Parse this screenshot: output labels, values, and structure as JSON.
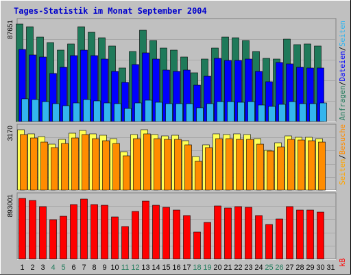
{
  "title": "Tages-Statistik im Monat September 2004",
  "colors": {
    "background": "#c0c0c0",
    "title": "#0000cc",
    "label_blue": "#0000ff",
    "anfragen": "#1f7a5a",
    "dateien": "#0000ff",
    "seiten": "#33b5ee",
    "besuche": "#ff8c00",
    "seiten_mid": "#ffff55",
    "kb": "#ff0000",
    "weekend_label": "#1f7a5a"
  },
  "chart_data": [
    {
      "type": "bar",
      "panel": "top",
      "ymax_label": "87651",
      "ylim": [
        0,
        87651
      ],
      "categories": [
        "1",
        "2",
        "3",
        "4",
        "5",
        "6",
        "7",
        "8",
        "9",
        "10",
        "11",
        "12",
        "13",
        "14",
        "15",
        "16",
        "17",
        "18",
        "19",
        "20",
        "21",
        "22",
        "23",
        "24",
        "25",
        "26",
        "27",
        "28",
        "29",
        "30",
        "31"
      ],
      "weekend_days": [
        "4",
        "5",
        "11",
        "12",
        "18",
        "19",
        "25",
        "26"
      ],
      "right_label_parts": [
        "Anfragen",
        "/",
        "Dateien",
        "/",
        "Seiten"
      ],
      "series": [
        {
          "name": "Anfragen",
          "values": [
            87651,
            85000,
            76000,
            71000,
            64000,
            70000,
            85000,
            80000,
            75000,
            68000,
            48000,
            63000,
            82000,
            73000,
            66000,
            64000,
            58000,
            44000,
            56000,
            66000,
            76000,
            75000,
            73000,
            63000,
            57000,
            56000,
            74000,
            69000,
            70000,
            68000,
            0
          ]
        },
        {
          "name": "Dateien",
          "values": [
            65000,
            60000,
            58000,
            43000,
            49000,
            59000,
            64000,
            59000,
            56000,
            45000,
            35000,
            51000,
            62000,
            56000,
            46000,
            45000,
            46000,
            33000,
            41000,
            57000,
            55000,
            55000,
            56000,
            45000,
            36000,
            53000,
            52000,
            49000,
            48000,
            48000,
            0
          ]
        },
        {
          "name": "Seiten",
          "values": [
            20500,
            19500,
            17600,
            16000,
            14500,
            16800,
            19500,
            18700,
            16600,
            16000,
            11900,
            16500,
            19000,
            17400,
            16000,
            15800,
            16200,
            12300,
            16000,
            17900,
            17600,
            17400,
            17800,
            14700,
            13500,
            15400,
            17800,
            16300,
            16300,
            16500,
            0
          ]
        }
      ]
    },
    {
      "type": "bar",
      "panel": "middle",
      "ymax_label": "3170",
      "ylim": [
        0,
        3170
      ],
      "right_label_parts": [
        "Seiten",
        "/",
        "Besuche"
      ],
      "series": [
        {
          "name": "Seiten",
          "values": [
            3170,
            2950,
            2800,
            2420,
            2650,
            3000,
            3120,
            2950,
            2880,
            2700,
            2020,
            2900,
            3170,
            2920,
            2850,
            2870,
            2600,
            1780,
            2390,
            2950,
            2920,
            2950,
            2930,
            2690,
            2100,
            2500,
            2850,
            2780,
            2770,
            2690,
            0
          ]
        },
        {
          "name": "Besuche",
          "values": [
            2930,
            2750,
            2530,
            2230,
            2450,
            2750,
            2900,
            2700,
            2600,
            2450,
            1790,
            2700,
            2950,
            2710,
            2660,
            2650,
            2370,
            1500,
            2230,
            2690,
            2700,
            2670,
            2650,
            2400,
            2040,
            2260,
            2650,
            2620,
            2600,
            2520,
            0
          ]
        }
      ]
    },
    {
      "type": "bar",
      "panel": "bottom",
      "ymax_label": "893001",
      "ylim": [
        0,
        893001
      ],
      "right_label_parts": [
        "kB"
      ],
      "series": [
        {
          "name": "kB",
          "values": [
            893001,
            860000,
            775000,
            575000,
            630000,
            800000,
            880000,
            800000,
            790000,
            620000,
            480000,
            700000,
            850000,
            790000,
            760000,
            720000,
            640000,
            400000,
            540000,
            780000,
            750000,
            770000,
            760000,
            640000,
            510000,
            590000,
            770000,
            720000,
            720000,
            690000,
            0
          ]
        }
      ]
    }
  ]
}
